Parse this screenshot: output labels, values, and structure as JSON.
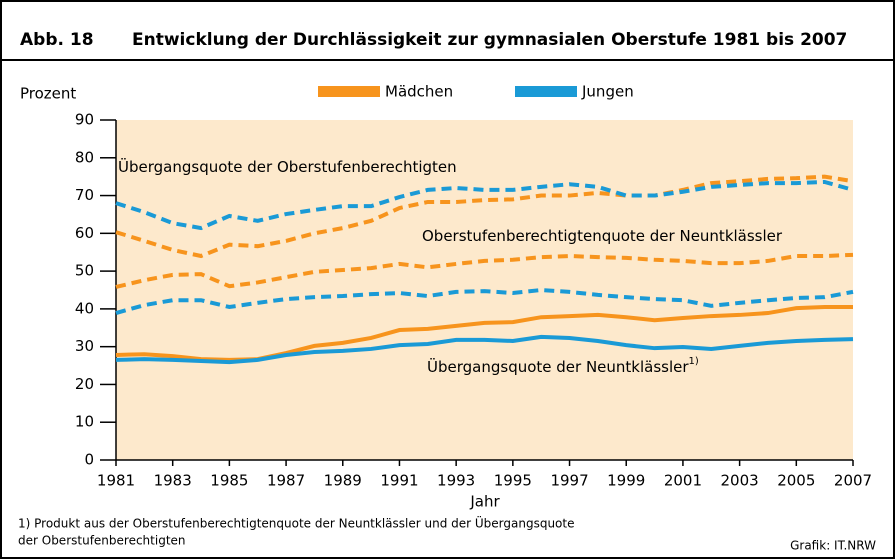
{
  "chart_data": {
    "type": "line",
    "figure_label": "Abb. 18",
    "title": "Entwicklung der Durchlässigkeit zur gymnasialen Oberstufe 1981 bis 2007",
    "ylabel": "Prozent",
    "xlabel": "Jahr",
    "xlim": [
      1981,
      2007
    ],
    "xticks": [
      1981,
      1983,
      1985,
      1987,
      1989,
      1991,
      1993,
      1995,
      1997,
      1999,
      2001,
      2003,
      2005,
      2007
    ],
    "ylim": [
      0,
      90
    ],
    "yticks": [
      0,
      10,
      20,
      30,
      40,
      50,
      60,
      70,
      80,
      90
    ],
    "background": "#fde9cc",
    "x": [
      1981,
      1982,
      1983,
      1984,
      1985,
      1986,
      1987,
      1988,
      1989,
      1990,
      1991,
      1992,
      1993,
      1994,
      1995,
      1996,
      1997,
      1998,
      1999,
      2000,
      2001,
      2002,
      2003,
      2004,
      2005,
      2006,
      2007
    ],
    "series": [
      {
        "name": "Mädchen",
        "color": "#f7941d",
        "dashed": true,
        "values": [
          60.3,
          58,
          55.6,
          54,
          57,
          56.6,
          58,
          60,
          61.4,
          63.3,
          66.7,
          68.3,
          68.3,
          68.8,
          69,
          70,
          70,
          70.7,
          70,
          70,
          71.5,
          73.3,
          73.8,
          74.4,
          74.6,
          75,
          73.8
        ]
      },
      {
        "name": "Jungen",
        "color": "#1a9ad6",
        "dashed": true,
        "values": [
          68,
          65.6,
          62.7,
          61.4,
          64.6,
          63.3,
          65.1,
          66.2,
          67.2,
          67.2,
          69.6,
          71.5,
          72,
          71.5,
          71.5,
          72.3,
          73,
          72.3,
          70,
          70,
          71,
          72.3,
          72.8,
          73.3,
          73.3,
          73.6,
          71.5
        ]
      },
      {
        "name": "Mädchen",
        "color": "#f7941d",
        "dashed": true,
        "values": [
          45.8,
          47.6,
          49,
          49.2,
          46,
          47,
          48.4,
          49.8,
          50.3,
          50.8,
          51.9,
          51,
          51.9,
          52.7,
          53,
          53.7,
          54,
          53.7,
          53.5,
          53,
          52.7,
          52.1,
          52.1,
          52.7,
          54,
          54,
          54.3
        ]
      },
      {
        "name": "Jungen",
        "color": "#1a9ad6",
        "dashed": true,
        "values": [
          38.9,
          41,
          42.3,
          42.3,
          40.5,
          41.6,
          42.6,
          43.1,
          43.4,
          43.9,
          44.2,
          43.4,
          44.5,
          44.7,
          44.2,
          45,
          44.5,
          43.7,
          43.1,
          42.6,
          42.3,
          40.8,
          41.6,
          42.3,
          42.9,
          43.1,
          44.5
        ]
      },
      {
        "name": "Mädchen",
        "color": "#f7941d",
        "dashed": false,
        "values": [
          27.8,
          28,
          27.5,
          26.7,
          26.5,
          26.7,
          28.3,
          30.2,
          31,
          32.3,
          34.4,
          34.7,
          35.5,
          36.3,
          36.5,
          37.8,
          38.1,
          38.4,
          37.8,
          37,
          37.6,
          38.1,
          38.4,
          38.9,
          40.2,
          40.5,
          40.5
        ]
      },
      {
        "name": "Jungen",
        "color": "#1a9ad6",
        "dashed": false,
        "values": [
          26.5,
          26.7,
          26.5,
          26.2,
          25.9,
          26.5,
          27.8,
          28.6,
          28.9,
          29.4,
          30.4,
          30.7,
          31.8,
          31.8,
          31.5,
          32.6,
          32.3,
          31.5,
          30.4,
          29.6,
          29.9,
          29.4,
          30.2,
          31,
          31.5,
          31.8,
          32
        ]
      }
    ],
    "annotations": [
      {
        "text": "Übergangsquote der Oberstufenberechtigten"
      },
      {
        "text": "Oberstufenberechtigtenquote der Neuntklässler"
      },
      {
        "text": "Übergangsquote der Neuntklässler",
        "note": "1)"
      }
    ],
    "footnote": [
      "1) Produkt aus der Oberstufenberechtigtenquote der Neuntklässler und der Übergangsquote",
      "der Oberstufenberechtigten"
    ],
    "source": "Grafik: IT.NRW"
  }
}
